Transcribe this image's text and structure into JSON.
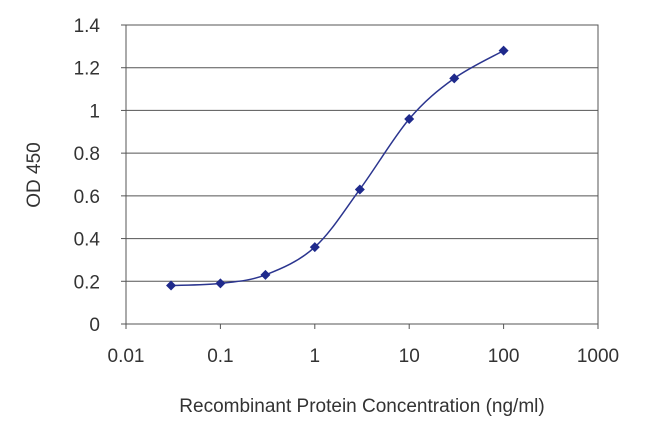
{
  "chart_data": {
    "type": "line",
    "title": "",
    "xlabel": "Recombinant Protein Concentration (ng/ml)",
    "ylabel": "OD 450",
    "x_scale": "log",
    "xlim": [
      0.01,
      1000
    ],
    "ylim": [
      0,
      1.4
    ],
    "x_ticks": [
      "0.01",
      "0.1",
      "1",
      "10",
      "100",
      "1000"
    ],
    "y_ticks": [
      "0",
      "0.2",
      "0.4",
      "0.6",
      "0.8",
      "1",
      "1.2",
      "1.4"
    ],
    "grid": "horizontal",
    "legend": "none",
    "series": [
      {
        "x": [
          0.03,
          0.1,
          0.3,
          1,
          3,
          10,
          30,
          100
        ],
        "y": [
          0.18,
          0.19,
          0.23,
          0.36,
          0.63,
          0.96,
          1.15,
          1.28
        ],
        "color": "#1f2a8c"
      }
    ]
  }
}
